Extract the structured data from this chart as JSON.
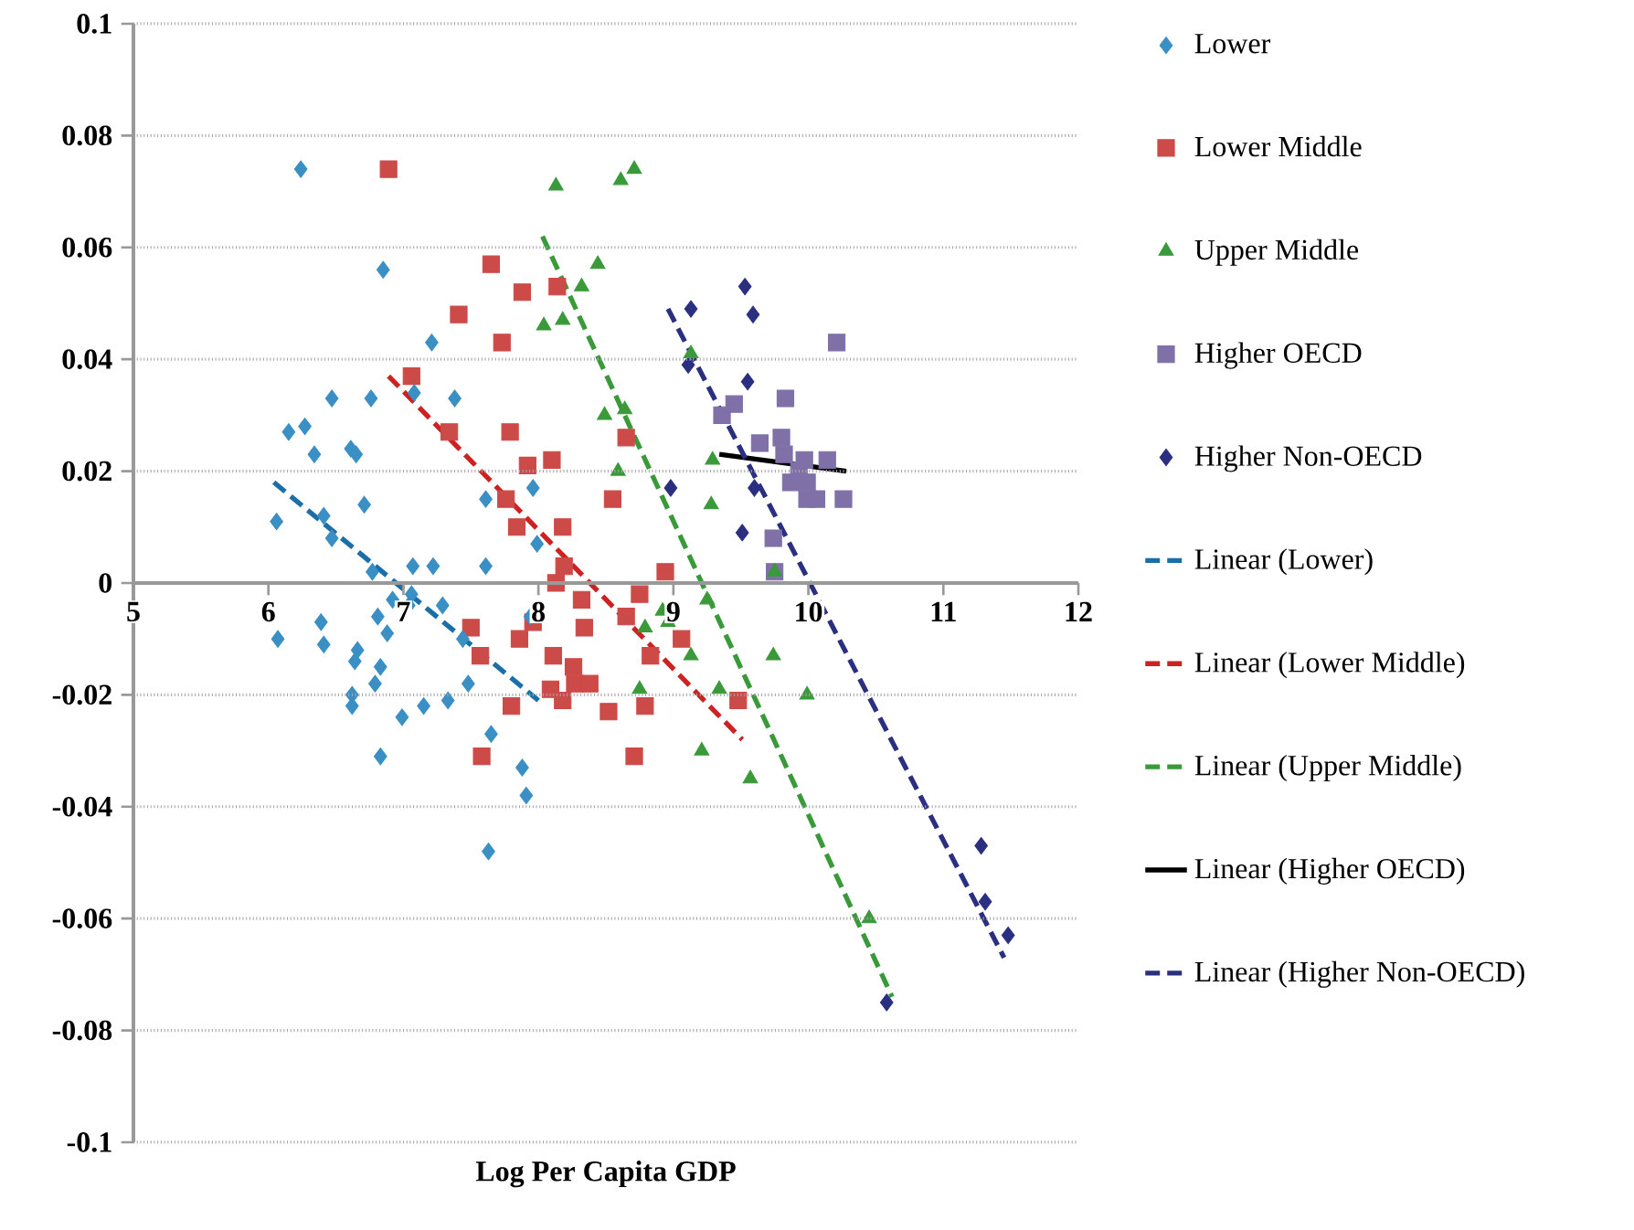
{
  "chart_data": {
    "type": "scatter",
    "xlabel": "Log Per Capita GDP",
    "xlim": [
      5,
      12
    ],
    "xticks": [
      5,
      6,
      7,
      8,
      9,
      10,
      11,
      12
    ],
    "ylim": [
      -0.1,
      0.1
    ],
    "yticks": [
      -0.1,
      -0.08,
      -0.06,
      -0.04,
      -0.02,
      0,
      0.02,
      0.04,
      0.06,
      0.08,
      0.1
    ],
    "grid": "y",
    "legend": "right",
    "series": [
      {
        "name": "Lower",
        "type": "scatter",
        "marker": "diamond",
        "color": "#3a8fc4",
        "x": [
          6.24,
          6.85,
          7.21,
          6.47,
          6.76,
          7.08,
          7.38,
          6.15,
          6.27,
          6.34,
          6.61,
          6.65,
          6.71,
          6.06,
          6.41,
          6.47,
          6.77,
          7.07,
          7.22,
          7.61,
          7.61,
          7.96,
          7.99,
          6.07,
          6.39,
          6.41,
          6.66,
          6.64,
          6.81,
          6.88,
          6.92,
          7.06,
          7.04,
          7.29,
          6.83,
          6.79,
          6.62,
          6.62,
          6.99,
          7.15,
          7.33,
          7.48,
          7.44,
          7.65,
          6.83,
          7.88,
          7.91,
          7.63,
          7.94
        ],
        "values": [
          0.074,
          0.056,
          0.043,
          0.033,
          0.033,
          0.034,
          0.033,
          0.027,
          0.028,
          0.023,
          0.024,
          0.023,
          0.014,
          0.011,
          0.012,
          0.008,
          0.002,
          0.003,
          0.003,
          0.003,
          0.015,
          0.017,
          0.007,
          -0.01,
          -0.007,
          -0.011,
          -0.012,
          -0.014,
          -0.006,
          -0.009,
          -0.003,
          -0.002,
          -0.004,
          -0.004,
          -0.015,
          -0.018,
          -0.02,
          -0.022,
          -0.024,
          -0.022,
          -0.021,
          -0.018,
          -0.01,
          -0.027,
          -0.031,
          -0.033,
          -0.038,
          -0.048,
          -0.006
        ]
      },
      {
        "name": "Lower Middle",
        "type": "scatter",
        "marker": "square",
        "color": "#cc4a48",
        "x": [
          6.89,
          7.65,
          7.88,
          8.14,
          7.41,
          7.73,
          7.06,
          7.34,
          7.79,
          7.92,
          8.1,
          7.76,
          8.18,
          8.55,
          8.65,
          7.84,
          8.19,
          8.13,
          8.94,
          8.75,
          8.32,
          8.34,
          8.65,
          7.5,
          7.96,
          7.86,
          8.11,
          8.26,
          8.27,
          8.38,
          8.09,
          8.18,
          7.8,
          7.57,
          8.52,
          7.58,
          8.71,
          8.79,
          8.83,
          9.06,
          9.48
        ],
        "values": [
          0.074,
          0.057,
          0.052,
          0.053,
          0.048,
          0.043,
          0.037,
          0.027,
          0.027,
          0.021,
          0.022,
          0.015,
          0.01,
          0.015,
          0.026,
          0.01,
          0.003,
          0.0,
          0.002,
          -0.002,
          -0.003,
          -0.008,
          -0.006,
          -0.008,
          -0.007,
          -0.01,
          -0.013,
          -0.015,
          -0.018,
          -0.018,
          -0.019,
          -0.021,
          -0.022,
          -0.013,
          -0.023,
          -0.031,
          -0.031,
          -0.022,
          -0.013,
          -0.01,
          -0.021
        ]
      },
      {
        "name": "Upper Middle",
        "type": "scatter",
        "marker": "triangle",
        "color": "#3a9a3a",
        "x": [
          8.13,
          8.71,
          8.61,
          8.44,
          8.32,
          8.04,
          8.18,
          9.13,
          8.49,
          8.64,
          8.59,
          9.29,
          9.28,
          9.75,
          9.25,
          8.79,
          8.92,
          8.96,
          9.13,
          9.74,
          8.75,
          9.34,
          9.99,
          9.21,
          9.57,
          10.45
        ],
        "values": [
          0.071,
          0.074,
          0.072,
          0.057,
          0.053,
          0.046,
          0.047,
          0.041,
          0.03,
          0.031,
          0.02,
          0.022,
          0.014,
          0.002,
          -0.003,
          -0.008,
          -0.005,
          -0.007,
          -0.013,
          -0.013,
          -0.019,
          -0.019,
          -0.02,
          -0.03,
          -0.035,
          -0.06
        ]
      },
      {
        "name": "Higher OECD",
        "type": "scatter",
        "marker": "square",
        "color": "#8070a8",
        "x": [
          10.21,
          9.83,
          9.45,
          9.36,
          9.64,
          9.8,
          9.82,
          9.97,
          10.14,
          9.93,
          9.87,
          9.99,
          9.99,
          10.06,
          10.26,
          9.74,
          9.75
        ],
        "values": [
          0.043,
          0.033,
          0.032,
          0.03,
          0.025,
          0.026,
          0.023,
          0.022,
          0.022,
          0.02,
          0.018,
          0.018,
          0.015,
          0.015,
          0.015,
          0.008,
          0.002
        ]
      },
      {
        "name": "Higher Non-OECD",
        "type": "scatter",
        "marker": "diamond",
        "color": "#2b2f80",
        "x": [
          9.13,
          9.53,
          9.59,
          9.11,
          9.55,
          8.98,
          9.6,
          9.51,
          11.28,
          11.31,
          11.48,
          10.58
        ],
        "values": [
          0.049,
          0.053,
          0.048,
          0.039,
          0.036,
          0.017,
          0.017,
          0.009,
          -0.047,
          -0.057,
          -0.063,
          -0.075
        ]
      },
      {
        "name": "Linear (Lower)",
        "type": "line",
        "line_style": "dashed",
        "color": "#1a6fa8",
        "x": [
          6.04,
          8.0
        ],
        "values": [
          0.018,
          -0.021
        ]
      },
      {
        "name": "Linear (Lower Middle)",
        "type": "line",
        "line_style": "dashed",
        "color": "#cc2222",
        "x": [
          6.89,
          9.51
        ],
        "values": [
          0.037,
          -0.028
        ]
      },
      {
        "name": "Linear (Upper Middle)",
        "type": "line",
        "line_style": "dashed",
        "color": "#3a9a3a",
        "x": [
          8.03,
          10.62
        ],
        "values": [
          0.062,
          -0.074
        ]
      },
      {
        "name": "Linear (Higher OECD)",
        "type": "line",
        "line_style": "solid",
        "color": "#000000",
        "x": [
          9.34,
          10.28
        ],
        "values": [
          0.023,
          0.02
        ]
      },
      {
        "name": "Linear (Higher Non-OECD)",
        "type": "line",
        "line_style": "dashed",
        "color": "#2b2f80",
        "x": [
          8.96,
          11.45
        ],
        "values": [
          0.049,
          -0.067
        ]
      }
    ]
  }
}
